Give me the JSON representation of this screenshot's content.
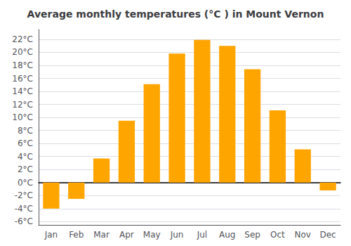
{
  "chart_data": {
    "type": "bar",
    "title": "Average monthly temperatures (°C ) in Mount Vernon",
    "categories": [
      "Jan",
      "Feb",
      "Mar",
      "Apr",
      "May",
      "Jun",
      "Jul",
      "Aug",
      "Sep",
      "Oct",
      "Nov",
      "Dec"
    ],
    "values": [
      -4.0,
      -2.5,
      3.7,
      9.5,
      15.1,
      19.8,
      21.9,
      21.0,
      17.4,
      11.1,
      5.1,
      -1.2
    ],
    "color": "#FFA500",
    "ylim": [
      -6.5,
      23.5
    ],
    "yticks": [
      {
        "value": -6,
        "label": "-6°C"
      },
      {
        "value": -4,
        "label": "-4°C"
      },
      {
        "value": -2,
        "label": "-2°C"
      },
      {
        "value": 0,
        "label": "0°C"
      },
      {
        "value": 2,
        "label": "2°C"
      },
      {
        "value": 4,
        "label": "4°C"
      },
      {
        "value": 6,
        "label": "6°C"
      },
      {
        "value": 8,
        "label": "8°C"
      },
      {
        "value": 10,
        "label": "10°C"
      },
      {
        "value": 12,
        "label": "12°C"
      },
      {
        "value": 14,
        "label": "14°C"
      },
      {
        "value": 16,
        "label": "16°C"
      },
      {
        "value": 18,
        "label": "18°C"
      },
      {
        "value": 20,
        "label": "20°C"
      },
      {
        "value": 22,
        "label": "22°C"
      }
    ],
    "grid": true
  }
}
